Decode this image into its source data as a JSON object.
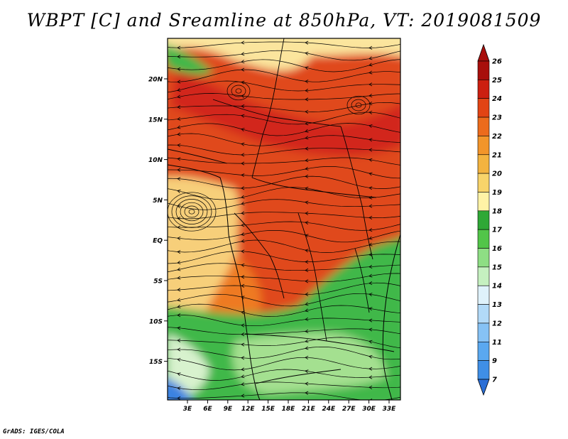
{
  "title": "WBPT [C] and Sreamline at 850hPa, VT: 2019081509",
  "credit": "GrADS: IGES/COLA",
  "lat_labels": [
    "20N",
    "15N",
    "10N",
    "5N",
    "EQ",
    "5S",
    "10S",
    "15S"
  ],
  "lon_labels": [
    "3E",
    "6E",
    "9E",
    "12E",
    "15E",
    "18E",
    "21E",
    "24E",
    "27E",
    "30E",
    "33E"
  ],
  "colorbar": {
    "levels": [
      "7",
      "9",
      "11",
      "12",
      "13",
      "14",
      "15",
      "16",
      "17",
      "18",
      "19",
      "20",
      "21",
      "22",
      "23",
      "24",
      "25",
      "26"
    ],
    "colors": [
      "#2b6fd6",
      "#3f8fe6",
      "#5aa8f0",
      "#86c2f5",
      "#b2daf8",
      "#dff2fb",
      "#c5f0c0",
      "#8ede84",
      "#52c549",
      "#2fa836",
      "#fff3a6",
      "#f8d46a",
      "#f3b33f",
      "#f2952a",
      "#ec6b1c",
      "#e24414",
      "#cc1f10",
      "#a80f0c"
    ]
  },
  "map_colors": {
    "hot": "#e0481a",
    "very_hot": "#d2281b",
    "warm": "#ee7a24",
    "mild": "#f4a23c",
    "tan": "#f7cf7a",
    "yellow": "#fbe59d",
    "green": "#3fb84a",
    "light_green": "#a4e090",
    "pale": "#d8f2ce",
    "blue": "#3a82e0"
  }
}
